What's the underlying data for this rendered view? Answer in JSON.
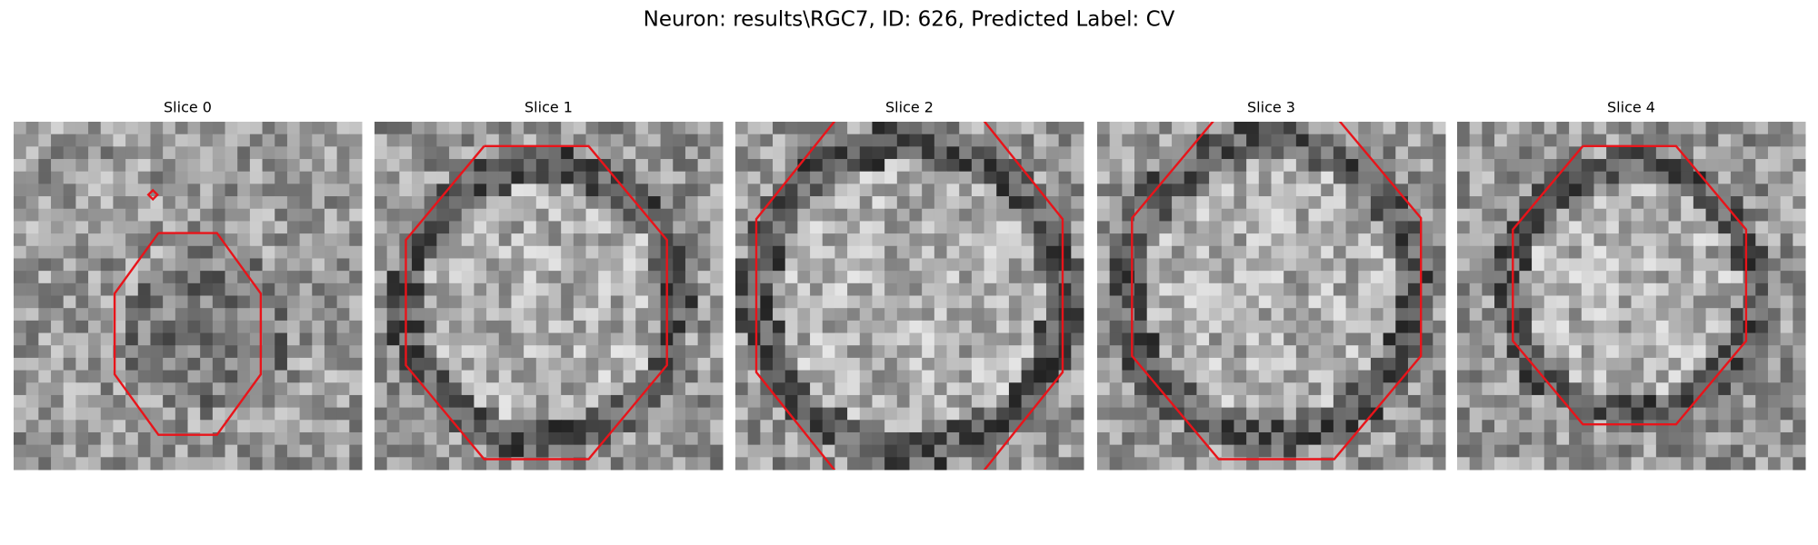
{
  "figure": {
    "title": "Neuron: results\\RGC7, ID: 626, Predicted Label: CV",
    "panels": [
      {
        "title": "Slice 0"
      },
      {
        "title": "Slice 1"
      },
      {
        "title": "Slice 2"
      },
      {
        "title": "Slice 3"
      },
      {
        "title": "Slice 4"
      }
    ]
  }
}
